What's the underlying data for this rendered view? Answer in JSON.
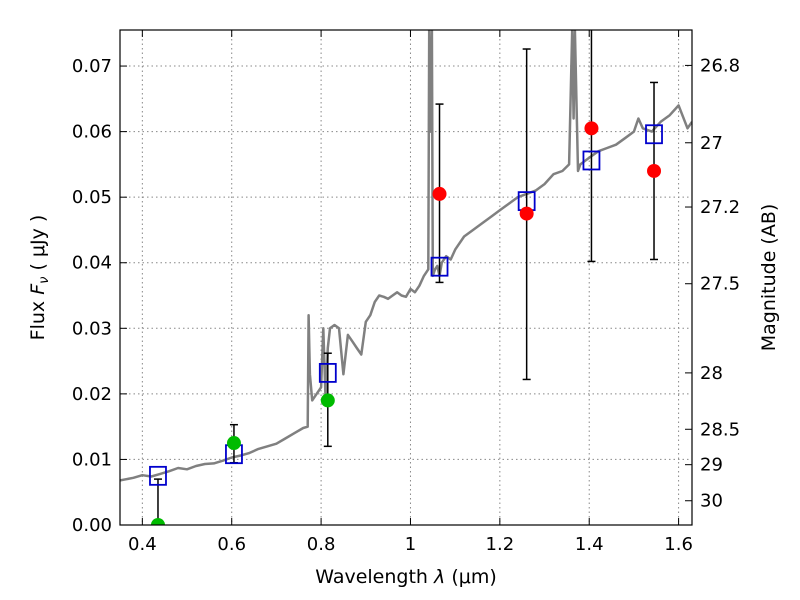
{
  "chart_data": {
    "type": "scatter",
    "xlabel_prefix": "Wavelength",
    "xlabel_symbol": "λ",
    "xlabel_unit": "(μm)",
    "ylabel_prefix": "Flux",
    "ylabel_symbol": "F",
    "ylabel_subscript": "ν",
    "ylabel_unit": "( μJy )",
    "y2label": "Magnitude (AB)",
    "xlim": [
      0.35,
      1.63
    ],
    "ylim": [
      0.0,
      0.0755
    ],
    "grid": true,
    "x_ticks": [
      0.4,
      0.6,
      0.8,
      1.0,
      1.2,
      1.4,
      1.6
    ],
    "x_tick_labels": [
      "0.4",
      "0.6",
      "0.8",
      "1",
      "1.2",
      "1.4",
      "1.6"
    ],
    "y_ticks": [
      0.0,
      0.01,
      0.02,
      0.03,
      0.04,
      0.05,
      0.06,
      0.07
    ],
    "y_tick_labels": [
      "0.00",
      "0.01",
      "0.02",
      "0.03",
      "0.04",
      "0.05",
      "0.06",
      "0.07"
    ],
    "right_axis_ticks": [
      {
        "label": "26.8",
        "flux": 0.0701
      },
      {
        "label": "27",
        "flux": 0.0583
      },
      {
        "label": "27.2",
        "flux": 0.0485
      },
      {
        "label": "27.5",
        "flux": 0.0368
      },
      {
        "label": "28",
        "flux": 0.0232
      },
      {
        "label": "28.5",
        "flux": 0.0146
      },
      {
        "label": "29",
        "flux": 0.0092
      },
      {
        "label": "30",
        "flux": 0.0037
      }
    ],
    "colors": {
      "spectrum": "#808080",
      "model_box": "#0000cc",
      "measured_red": "#ff0000",
      "measured_green": "#00bb00",
      "errorbar": "#000000",
      "grid": "#888888"
    },
    "series": [
      {
        "kind": "spectrum",
        "x": [
          0.35,
          0.38,
          0.4,
          0.42,
          0.44,
          0.46,
          0.48,
          0.5,
          0.52,
          0.54,
          0.56,
          0.58,
          0.6,
          0.62,
          0.64,
          0.66,
          0.68,
          0.7,
          0.72,
          0.74,
          0.76,
          0.77,
          0.772,
          0.775,
          0.78,
          0.79,
          0.8,
          0.805,
          0.81,
          0.815,
          0.82,
          0.83,
          0.84,
          0.85,
          0.86,
          0.87,
          0.88,
          0.89,
          0.9,
          0.91,
          0.92,
          0.93,
          0.94,
          0.95,
          0.96,
          0.97,
          0.98,
          0.99,
          1.0,
          1.01,
          1.02,
          1.03,
          1.04,
          1.042,
          1.045,
          1.048,
          1.05,
          1.055,
          1.06,
          1.065,
          1.07,
          1.08,
          1.09,
          1.1,
          1.12,
          1.14,
          1.16,
          1.18,
          1.2,
          1.22,
          1.24,
          1.26,
          1.28,
          1.3,
          1.32,
          1.34,
          1.355,
          1.362,
          1.365,
          1.368,
          1.375,
          1.38,
          1.4,
          1.42,
          1.44,
          1.46,
          1.48,
          1.5,
          1.51,
          1.52,
          1.54,
          1.56,
          1.58,
          1.6,
          1.62,
          1.63
        ],
        "y": [
          0.0068,
          0.0072,
          0.0076,
          0.0074,
          0.0078,
          0.0082,
          0.0087,
          0.0085,
          0.009,
          0.0093,
          0.0094,
          0.0098,
          0.0103,
          0.0106,
          0.011,
          0.0116,
          0.012,
          0.0124,
          0.0132,
          0.014,
          0.0148,
          0.015,
          0.032,
          0.023,
          0.019,
          0.02,
          0.021,
          0.03,
          0.019,
          0.027,
          0.03,
          0.0305,
          0.03,
          0.023,
          0.029,
          0.028,
          0.027,
          0.026,
          0.031,
          0.032,
          0.034,
          0.035,
          0.0348,
          0.0345,
          0.035,
          0.0355,
          0.035,
          0.0348,
          0.036,
          0.0355,
          0.0365,
          0.038,
          0.039,
          0.0755,
          0.06,
          0.0755,
          0.038,
          0.039,
          0.0395,
          0.038,
          0.04,
          0.041,
          0.0405,
          0.042,
          0.044,
          0.045,
          0.046,
          0.047,
          0.048,
          0.049,
          0.05,
          0.0505,
          0.051,
          0.052,
          0.0535,
          0.054,
          0.055,
          0.0755,
          0.062,
          0.0755,
          0.054,
          0.055,
          0.056,
          0.057,
          0.0575,
          0.058,
          0.059,
          0.06,
          0.062,
          0.0605,
          0.06,
          0.0615,
          0.0625,
          0.064,
          0.0605,
          0.0615
        ]
      },
      {
        "kind": "model_box",
        "x": [
          0.435,
          0.605,
          0.815,
          1.065,
          1.26,
          1.405,
          1.545
        ],
        "y": [
          0.0075,
          0.0108,
          0.0232,
          0.0394,
          0.0494,
          0.0556,
          0.0596
        ]
      },
      {
        "kind": "measured_red",
        "x": [
          1.065,
          1.26,
          1.405,
          1.545
        ],
        "y": [
          0.0505,
          0.0475,
          0.0605,
          0.054
        ],
        "err_low": [
          0.037,
          0.0222,
          0.0402,
          0.0405
        ],
        "err_high": [
          0.0642,
          0.0726,
          0.0755,
          0.0675
        ]
      },
      {
        "kind": "measured_green",
        "x": [
          0.435,
          0.605,
          0.815
        ],
        "y": [
          0.0,
          0.0125,
          0.019
        ],
        "err_low": [
          0.0,
          0.0095,
          0.012
        ],
        "err_high": [
          0.007,
          0.0153,
          0.0262
        ]
      }
    ]
  }
}
